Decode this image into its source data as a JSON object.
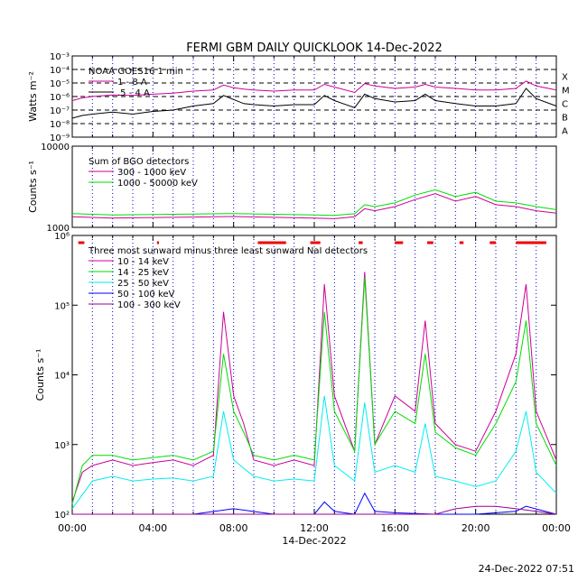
{
  "title": "FERMI GBM DAILY QUICKLOOK   14-Dec-2022",
  "footer_timestamp": "24-Dec-2022 07:51",
  "x_axis": {
    "ticks": [
      "00:00",
      "04:00",
      "08:00",
      "12:00",
      "16:00",
      "20:00",
      "00:00"
    ],
    "date_label": "14-Dec-2022"
  },
  "chart_data": [
    {
      "type": "line",
      "panel": "goes",
      "ylabel": "Watts m⁻²",
      "y_scale": "log",
      "ylim": [
        1e-09,
        0.001
      ],
      "y_tick_labels": [
        "10⁻³",
        "10⁻⁴",
        "10⁻⁵",
        "10⁻⁶",
        "10⁻⁷",
        "10⁻⁸",
        "10⁻⁹"
      ],
      "class_labels": [
        "X",
        "M",
        "C",
        "B",
        "A"
      ],
      "legend_title": "NOAA GOES16 1 min",
      "legend_placement": "top-left",
      "dashed_levels": [
        0.0001,
        1e-05,
        1e-06,
        1e-07,
        1e-08
      ],
      "series": [
        {
          "name": "1 - 8 A",
          "color": "#cc0099",
          "x": [
            0,
            0.5,
            1,
            2,
            3,
            4,
            5,
            6,
            7,
            7.5,
            8,
            8.5,
            9,
            10,
            11,
            12,
            12.5,
            13,
            14,
            14.5,
            15,
            16,
            17,
            17.5,
            18,
            19,
            20,
            21,
            22,
            22.5,
            23,
            24
          ],
          "y": [
            5e-07,
            8e-07,
            1e-06,
            1.3e-06,
            1.2e-06,
            1.5e-06,
            1.8e-06,
            2.5e-06,
            3e-06,
            7e-06,
            4.5e-06,
            3.5e-06,
            3e-06,
            2.5e-06,
            3e-06,
            3e-06,
            8e-06,
            5e-06,
            2e-06,
            9e-06,
            6e-06,
            4e-06,
            5e-06,
            8e-06,
            5e-06,
            4e-06,
            3e-06,
            3e-06,
            4e-06,
            1.4e-05,
            6e-06,
            3e-06
          ]
        },
        {
          "name": ".5 - 4 A",
          "color": "#000000",
          "x": [
            0,
            0.5,
            1,
            2,
            3,
            4,
            5,
            6,
            7,
            7.5,
            8,
            8.5,
            9,
            10,
            11,
            12,
            12.5,
            13,
            14,
            14.5,
            15,
            16,
            17,
            17.5,
            18,
            19,
            20,
            21,
            22,
            22.5,
            23,
            24
          ],
          "y": [
            2.5e-08,
            4e-08,
            5e-08,
            7e-08,
            5e-08,
            8e-08,
            1e-07,
            2e-07,
            3e-07,
            1.2e-06,
            6e-07,
            3e-07,
            2.5e-07,
            2e-07,
            2.5e-07,
            2.5e-07,
            1.2e-06,
            5e-07,
            1.5e-07,
            1.5e-06,
            7e-07,
            4e-07,
            5e-07,
            1.5e-06,
            5e-07,
            3e-07,
            2e-07,
            2e-07,
            3e-07,
            4e-06,
            7e-07,
            2e-07
          ]
        }
      ]
    },
    {
      "type": "line",
      "panel": "bgo",
      "ylabel": "Counts s⁻¹",
      "y_scale": "log",
      "ylim": [
        1000,
        10000
      ],
      "y_tick_labels": [
        "10000",
        "1000"
      ],
      "legend_title": "Sum of BGO detectors",
      "legend_placement": "top-left",
      "series": [
        {
          "name": "300 - 1000 keV",
          "color": "#cc0099",
          "x": [
            0,
            2,
            4,
            6,
            8,
            10,
            12,
            13,
            14,
            14.5,
            15,
            16,
            17,
            18,
            19,
            20,
            21,
            22,
            23,
            24
          ],
          "y": [
            1350,
            1300,
            1320,
            1340,
            1360,
            1330,
            1300,
            1280,
            1350,
            1700,
            1600,
            1800,
            2200,
            2600,
            2100,
            2400,
            1900,
            1800,
            1600,
            1500
          ]
        },
        {
          "name": "1000 - 50000 keV",
          "color": "#00dd00",
          "x": [
            0,
            2,
            4,
            6,
            8,
            10,
            12,
            13,
            14,
            14.5,
            15,
            16,
            17,
            18,
            19,
            20,
            21,
            22,
            23,
            24
          ],
          "y": [
            1480,
            1420,
            1440,
            1460,
            1480,
            1450,
            1420,
            1400,
            1470,
            1900,
            1800,
            2000,
            2500,
            2900,
            2400,
            2700,
            2100,
            2000,
            1800,
            1650
          ]
        }
      ]
    },
    {
      "type": "line",
      "panel": "nai",
      "ylabel": "Counts s⁻¹",
      "y_scale": "log",
      "ylim": [
        100,
        1000000
      ],
      "y_tick_labels": [
        "10⁶",
        "10⁵",
        "10⁴",
        "10³",
        "10²"
      ],
      "legend_title": "Three most sunward minus three least sunward NaI detectors",
      "legend_placement": "top-left",
      "series": [
        {
          "name": "10 - 14 keV",
          "color": "#cc0099",
          "x": [
            0,
            0.5,
            1,
            2,
            3,
            4,
            5,
            6,
            7,
            7.5,
            8,
            8.5,
            9,
            10,
            11,
            12,
            12.5,
            13,
            14,
            14.5,
            15,
            16,
            17,
            17.5,
            18,
            19,
            20,
            21,
            22,
            22.5,
            23,
            24
          ],
          "y": [
            150,
            400,
            500,
            600,
            500,
            550,
            600,
            500,
            700,
            80000,
            5000,
            2000,
            600,
            500,
            600,
            500,
            200000,
            5000,
            800,
            300000,
            1000,
            5000,
            3000,
            60000,
            2000,
            1000,
            800,
            3000,
            20000,
            200000,
            3000,
            600
          ]
        },
        {
          "name": "14 - 25 keV",
          "color": "#00dd00",
          "x": [
            0,
            0.5,
            1,
            2,
            3,
            4,
            5,
            6,
            7,
            7.5,
            8,
            8.5,
            9,
            10,
            11,
            12,
            12.5,
            13,
            14,
            14.5,
            15,
            16,
            17,
            17.5,
            18,
            19,
            20,
            21,
            22,
            22.5,
            23,
            24
          ],
          "y": [
            140,
            500,
            700,
            700,
            600,
            650,
            700,
            600,
            800,
            20000,
            3000,
            1500,
            700,
            600,
            700,
            600,
            80000,
            3000,
            800,
            250000,
            1000,
            3000,
            2000,
            20000,
            1500,
            900,
            700,
            2000,
            8000,
            60000,
            2000,
            500
          ]
        },
        {
          "name": "25 - 50 keV",
          "color": "#00eeee",
          "x": [
            0,
            1,
            2,
            3,
            4,
            5,
            6,
            7,
            7.5,
            8,
            9,
            10,
            11,
            12,
            12.5,
            13,
            14,
            14.5,
            15,
            16,
            17,
            17.5,
            18,
            19,
            20,
            21,
            22,
            22.5,
            23,
            24
          ],
          "y": [
            120,
            300,
            350,
            300,
            320,
            330,
            300,
            350,
            3000,
            600,
            350,
            300,
            320,
            300,
            5000,
            500,
            300,
            4000,
            400,
            500,
            400,
            2000,
            350,
            300,
            250,
            300,
            800,
            3000,
            400,
            200
          ]
        },
        {
          "name": "50 - 100 keV",
          "color": "#0000ff",
          "x": [
            0,
            2,
            4,
            6,
            8,
            10,
            12,
            12.5,
            13,
            14,
            14.5,
            15,
            16,
            18,
            20,
            22,
            22.5,
            24
          ],
          "y": [
            100,
            100,
            100,
            100,
            120,
            100,
            100,
            150,
            110,
            100,
            200,
            110,
            105,
            100,
            100,
            110,
            130,
            100
          ]
        },
        {
          "name": "100 - 300 keV",
          "color": "#990099",
          "x": [
            0,
            2,
            4,
            6,
            8,
            10,
            12,
            14,
            16,
            18,
            19,
            20,
            21,
            22,
            23,
            24
          ],
          "y": [
            100,
            100,
            100,
            100,
            100,
            100,
            100,
            100,
            100,
            100,
            120,
            130,
            130,
            120,
            110,
            100
          ]
        }
      ],
      "sunward_flag_segments": [
        [
          0.3,
          0.6
        ],
        [
          4.2,
          4.3
        ],
        [
          9.2,
          10.6
        ],
        [
          11.8,
          12.3
        ],
        [
          14.2,
          14.4
        ],
        [
          16.0,
          16.4
        ],
        [
          17.6,
          17.9
        ],
        [
          19.2,
          19.4
        ],
        [
          20.7,
          21.0
        ],
        [
          22.0,
          23.5
        ]
      ]
    }
  ]
}
